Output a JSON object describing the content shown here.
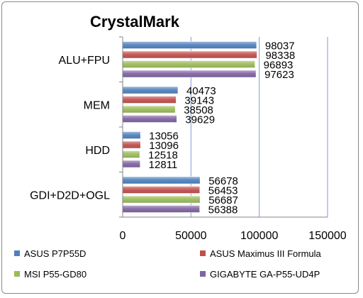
{
  "chart_data": {
    "type": "bar",
    "orientation": "horizontal",
    "title": "CrystalMark",
    "categories": [
      "ALU+FPU",
      "MEM",
      "HDD",
      "GDI+D2D+OGL"
    ],
    "series": [
      {
        "name": "ASUS P7P55D",
        "color": "#4f81bd",
        "values": [
          98037,
          40473,
          13056,
          56678
        ]
      },
      {
        "name": "ASUS Maximus III Formula",
        "color": "#c0504d",
        "values": [
          98338,
          39143,
          13096,
          56453
        ]
      },
      {
        "name": "MSI P55-GD80",
        "color": "#9bbb59",
        "values": [
          96893,
          38508,
          12518,
          56687
        ]
      },
      {
        "name": "GIGABYTE GA-P55-UD4P",
        "color": "#8064a2",
        "values": [
          97623,
          39629,
          12811,
          56388
        ]
      }
    ],
    "xlim": [
      0,
      150000
    ],
    "xticks": [
      "0",
      "50000",
      "100000",
      "150000"
    ],
    "grid": true,
    "legend_position": "bottom"
  }
}
